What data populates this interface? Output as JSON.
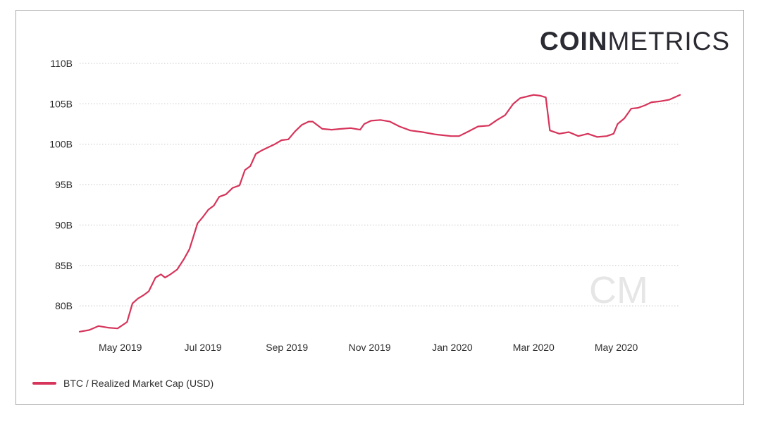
{
  "brand": {
    "bold": "COIN",
    "light": "METRICS"
  },
  "watermark": "CM",
  "colors": {
    "series": "#d6345a",
    "grid": "#c8c8c8",
    "text": "#2e2e2e"
  },
  "chart_data": {
    "type": "line",
    "title": "",
    "xlabel": "",
    "ylabel": "",
    "y_unit": "B",
    "ylim": [
      76,
      110
    ],
    "xlim": [
      "2019-04-01",
      "2020-06-17"
    ],
    "y_ticks": [
      80,
      85,
      90,
      95,
      100,
      105,
      110
    ],
    "y_tick_labels": [
      "80B",
      "85B",
      "90B",
      "95B",
      "100B",
      "105B",
      "110B"
    ],
    "x_ticks": [
      "2019-05-01",
      "2019-07-01",
      "2019-09-01",
      "2019-11-01",
      "2020-01-01",
      "2020-03-01",
      "2020-05-01"
    ],
    "x_tick_labels": [
      "May 2019",
      "Jul 2019",
      "Sep 2019",
      "Nov 2019",
      "Jan 2020",
      "Mar 2020",
      "May 2020"
    ],
    "grid": "horizontal dotted",
    "legend_position": "bottom-left",
    "series": [
      {
        "name": "BTC / Realized Market Cap (USD)",
        "x": [
          "2019-04-01",
          "2019-04-08",
          "2019-04-15",
          "2019-04-22",
          "2019-04-29",
          "2019-05-06",
          "2019-05-10",
          "2019-05-14",
          "2019-05-18",
          "2019-05-22",
          "2019-05-27",
          "2019-05-31",
          "2019-06-03",
          "2019-06-07",
          "2019-06-12",
          "2019-06-17",
          "2019-06-21",
          "2019-06-24",
          "2019-06-27",
          "2019-07-01",
          "2019-07-05",
          "2019-07-09",
          "2019-07-13",
          "2019-07-18",
          "2019-07-23",
          "2019-07-28",
          "2019-08-01",
          "2019-08-05",
          "2019-08-09",
          "2019-08-13",
          "2019-08-18",
          "2019-08-23",
          "2019-08-28",
          "2019-09-02",
          "2019-09-07",
          "2019-09-12",
          "2019-09-17",
          "2019-09-20",
          "2019-09-27",
          "2019-10-04",
          "2019-10-11",
          "2019-10-18",
          "2019-10-25",
          "2019-10-28",
          "2019-11-02",
          "2019-11-09",
          "2019-11-16",
          "2019-11-23",
          "2019-12-01",
          "2019-12-10",
          "2019-12-20",
          "2019-12-31",
          "2020-01-06",
          "2020-01-12",
          "2020-01-20",
          "2020-01-28",
          "2020-02-03",
          "2020-02-09",
          "2020-02-15",
          "2020-02-20",
          "2020-02-25",
          "2020-03-01",
          "2020-03-06",
          "2020-03-10",
          "2020-03-13",
          "2020-03-20",
          "2020-03-27",
          "2020-04-03",
          "2020-04-10",
          "2020-04-17",
          "2020-04-24",
          "2020-04-29",
          "2020-05-02",
          "2020-05-07",
          "2020-05-12",
          "2020-05-17",
          "2020-05-22",
          "2020-05-27",
          "2020-06-02",
          "2020-06-09",
          "2020-06-17"
        ],
        "values": [
          76.8,
          77.0,
          77.5,
          77.3,
          77.2,
          78.0,
          80.3,
          80.9,
          81.3,
          81.8,
          83.5,
          83.9,
          83.5,
          83.9,
          84.5,
          85.8,
          87.0,
          88.6,
          90.2,
          91.0,
          91.9,
          92.4,
          93.5,
          93.8,
          94.6,
          94.9,
          96.8,
          97.3,
          98.8,
          99.2,
          99.6,
          100.0,
          100.5,
          100.6,
          101.6,
          102.4,
          102.8,
          102.8,
          101.9,
          101.8,
          101.9,
          102.0,
          101.8,
          102.5,
          102.9,
          103.0,
          102.8,
          102.2,
          101.7,
          101.5,
          101.2,
          101.0,
          101.0,
          101.5,
          102.2,
          102.3,
          103.0,
          103.6,
          105.0,
          105.7,
          105.9,
          106.1,
          106.0,
          105.8,
          101.7,
          101.3,
          101.5,
          101.0,
          101.3,
          100.9,
          101.0,
          101.3,
          102.5,
          103.2,
          104.4,
          104.5,
          104.8,
          105.2,
          105.3,
          105.5,
          106.1
        ]
      }
    ]
  }
}
